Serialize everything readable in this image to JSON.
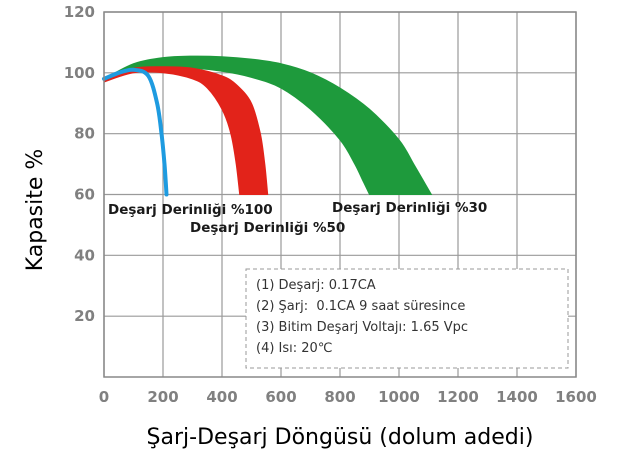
{
  "chart_data": {
    "type": "area",
    "xlabel": "Şarj-Deşarj Döngüsü (dolum adedi)",
    "ylabel": "Kapasite %",
    "xlim": [
      0,
      1600
    ],
    "ylim": [
      0,
      120
    ],
    "xticks": [
      0,
      200,
      400,
      600,
      800,
      1000,
      1200,
      1400,
      1600
    ],
    "yticks": [
      20,
      40,
      60,
      80,
      100,
      120
    ],
    "x_tick_labels": [
      "0",
      "200",
      "400",
      "600",
      "800",
      "1000",
      "1200",
      "1400",
      "1600"
    ],
    "y_tick_labels": [
      "20",
      "40",
      "60",
      "80",
      "100",
      "120"
    ],
    "grid": true,
    "series": [
      {
        "name": "Deşarj Derinliği %30",
        "color": "#1e9a3c",
        "upper": [
          [
            0,
            98
          ],
          [
            100,
            103
          ],
          [
            200,
            105
          ],
          [
            300,
            105.5
          ],
          [
            400,
            105.3
          ],
          [
            500,
            104.5
          ],
          [
            600,
            103
          ],
          [
            700,
            100
          ],
          [
            800,
            95
          ],
          [
            900,
            88
          ],
          [
            1000,
            78
          ],
          [
            1050,
            70
          ],
          [
            1080,
            65
          ],
          [
            1110,
            60
          ]
        ],
        "lower": [
          [
            0,
            97
          ],
          [
            100,
            101
          ],
          [
            200,
            101.5
          ],
          [
            300,
            101.5
          ],
          [
            400,
            100.5
          ],
          [
            500,
            98.5
          ],
          [
            600,
            95
          ],
          [
            700,
            88
          ],
          [
            800,
            78
          ],
          [
            850,
            70
          ],
          [
            880,
            64
          ],
          [
            900,
            60
          ]
        ]
      },
      {
        "name": "Deşarj Derinliği %50",
        "color": "#e2231a",
        "upper": [
          [
            0,
            98
          ],
          [
            100,
            101.5
          ],
          [
            200,
            102
          ],
          [
            300,
            101.5
          ],
          [
            400,
            99
          ],
          [
            450,
            96
          ],
          [
            500,
            90
          ],
          [
            530,
            80
          ],
          [
            545,
            70
          ],
          [
            555,
            60
          ]
        ],
        "lower": [
          [
            0,
            97
          ],
          [
            100,
            100
          ],
          [
            200,
            100
          ],
          [
            300,
            98
          ],
          [
            350,
            95
          ],
          [
            400,
            88
          ],
          [
            430,
            80
          ],
          [
            448,
            70
          ],
          [
            460,
            60
          ]
        ]
      },
      {
        "name": "Deşarj Derinliği %100",
        "color": "#1e9be0",
        "line": [
          [
            0,
            98
          ],
          [
            50,
            100
          ],
          [
            100,
            101
          ],
          [
            150,
            99
          ],
          [
            180,
            90
          ],
          [
            195,
            80
          ],
          [
            205,
            70
          ],
          [
            212,
            60
          ]
        ]
      }
    ],
    "annotations": {
      "label_30": "Deşarj Derinliği %30",
      "label_50": "Deşarj Derinliği %50",
      "label_100": "Deşarj Derinliği %100",
      "notes": [
        "(1) Deşarj: 0.17CA",
        "(2) Şarj:  0.1CA 9 saat süresince",
        "(3) Bitim Deşarj Voltajı: 1.65 Vpc",
        "(4) Isı: 20℃"
      ]
    }
  }
}
